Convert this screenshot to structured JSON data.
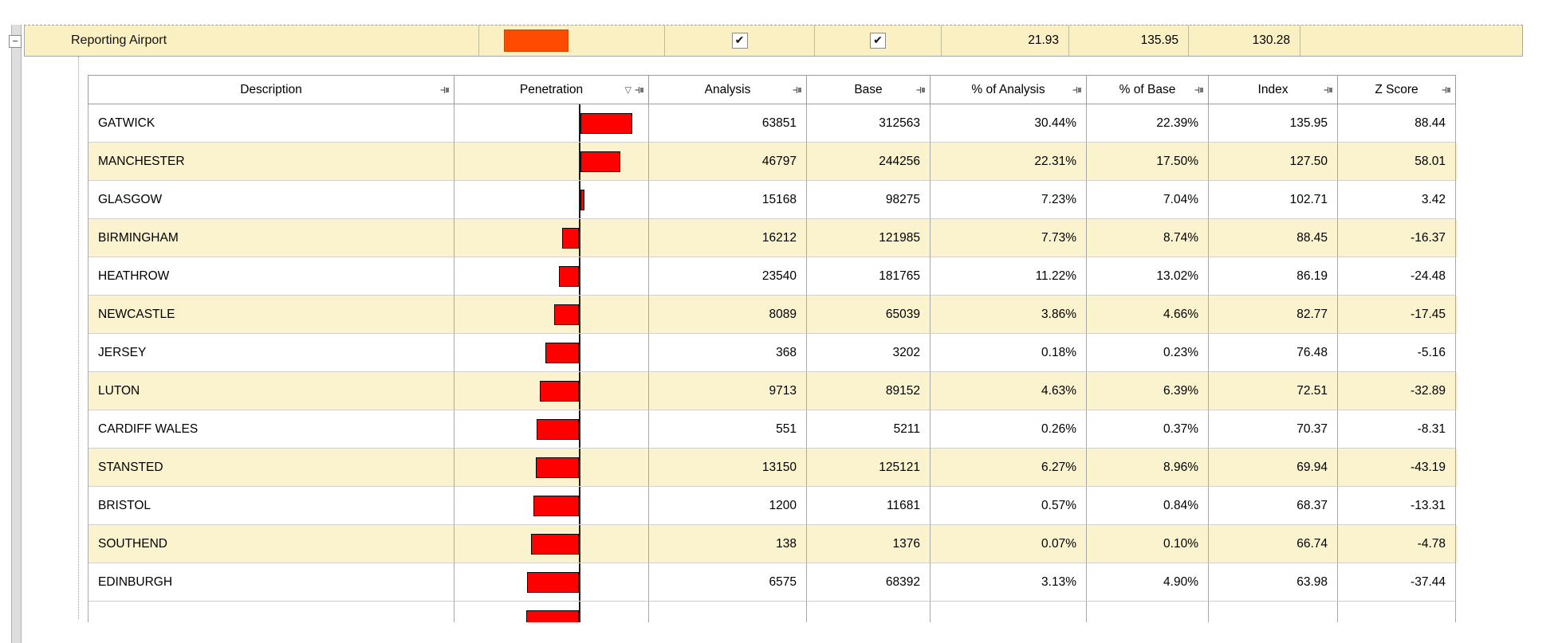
{
  "group_row": {
    "label": "Reporting Airport",
    "analysis_checked": true,
    "base_checked": true,
    "values": [
      "21.93",
      "135.95",
      "130.28"
    ]
  },
  "icons": {
    "collapse": "−",
    "filter": "▽",
    "check": "✔"
  },
  "colors": {
    "row_alt": "#faf3ce",
    "group_bg": "#fbf0c2",
    "bar_red": "#ff0000",
    "group_bar": "#ff4b00"
  },
  "table": {
    "columns": [
      {
        "id": "description",
        "label": "Description"
      },
      {
        "id": "penetration",
        "label": "Penetration",
        "has_filter": true
      },
      {
        "id": "analysis",
        "label": "Analysis"
      },
      {
        "id": "base",
        "label": "Base"
      },
      {
        "id": "pct_analysis",
        "label": "% of Analysis"
      },
      {
        "id": "pct_base",
        "label": "% of Base"
      },
      {
        "id": "index",
        "label": "Index"
      },
      {
        "id": "z_score",
        "label": "Z Score"
      }
    ],
    "rows": [
      {
        "description": "GATWICK",
        "analysis": "63851",
        "base": "312563",
        "pct_analysis": "30.44%",
        "pct_base": "22.39%",
        "index": "135.95",
        "z_score": "88.44"
      },
      {
        "description": "MANCHESTER",
        "analysis": "46797",
        "base": "244256",
        "pct_analysis": "22.31%",
        "pct_base": "17.50%",
        "index": "127.50",
        "z_score": "58.01"
      },
      {
        "description": "GLASGOW",
        "analysis": "15168",
        "base": "98275",
        "pct_analysis": "7.23%",
        "pct_base": "7.04%",
        "index": "102.71",
        "z_score": "3.42"
      },
      {
        "description": "BIRMINGHAM",
        "analysis": "16212",
        "base": "121985",
        "pct_analysis": "7.73%",
        "pct_base": "8.74%",
        "index": "88.45",
        "z_score": "-16.37"
      },
      {
        "description": "HEATHROW",
        "analysis": "23540",
        "base": "181765",
        "pct_analysis": "11.22%",
        "pct_base": "13.02%",
        "index": "86.19",
        "z_score": "-24.48"
      },
      {
        "description": "NEWCASTLE",
        "analysis": "8089",
        "base": "65039",
        "pct_analysis": "3.86%",
        "pct_base": "4.66%",
        "index": "82.77",
        "z_score": "-17.45"
      },
      {
        "description": "JERSEY",
        "analysis": "368",
        "base": "3202",
        "pct_analysis": "0.18%",
        "pct_base": "0.23%",
        "index": "76.48",
        "z_score": "-5.16"
      },
      {
        "description": "LUTON",
        "analysis": "9713",
        "base": "89152",
        "pct_analysis": "4.63%",
        "pct_base": "6.39%",
        "index": "72.51",
        "z_score": "-32.89"
      },
      {
        "description": "CARDIFF WALES",
        "analysis": "551",
        "base": "5211",
        "pct_analysis": "0.26%",
        "pct_base": "0.37%",
        "index": "70.37",
        "z_score": "-8.31"
      },
      {
        "description": "STANSTED",
        "analysis": "13150",
        "base": "125121",
        "pct_analysis": "6.27%",
        "pct_base": "8.96%",
        "index": "69.94",
        "z_score": "-43.19"
      },
      {
        "description": "BRISTOL",
        "analysis": "1200",
        "base": "11681",
        "pct_analysis": "0.57%",
        "pct_base": "0.84%",
        "index": "68.37",
        "z_score": "-13.31"
      },
      {
        "description": "SOUTHEND",
        "analysis": "138",
        "base": "1376",
        "pct_analysis": "0.07%",
        "pct_base": "0.10%",
        "index": "66.74",
        "z_score": "-4.78"
      },
      {
        "description": "EDINBURGH",
        "analysis": "6575",
        "base": "68392",
        "pct_analysis": "3.13%",
        "pct_base": "4.90%",
        "index": "63.98",
        "z_score": "-37.44"
      }
    ],
    "partial_row": {
      "visible": true,
      "bar_side": "left"
    }
  }
}
